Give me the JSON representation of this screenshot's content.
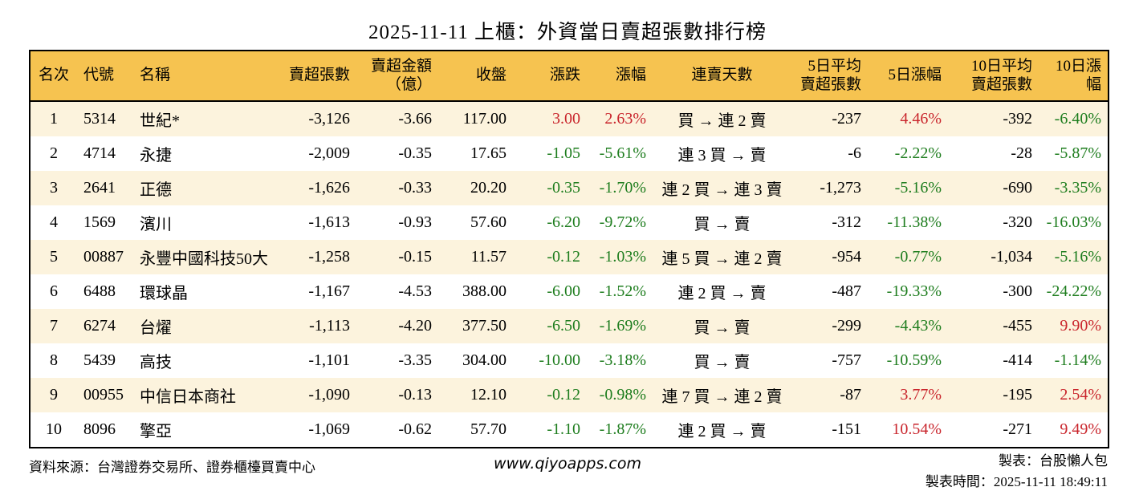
{
  "page": {
    "title": "2025-11-11 上櫃：外資當日賣超張數排行榜"
  },
  "colors": {
    "header_bg": "#f6c350",
    "row_alt_bg": "#fcf3dd",
    "up_red": "#c9252c",
    "down_green": "#1e7d1e",
    "border": "#000000"
  },
  "table": {
    "columns": [
      {
        "key": "rank",
        "label": "名次"
      },
      {
        "key": "code",
        "label": "代號"
      },
      {
        "key": "name",
        "label": "名稱"
      },
      {
        "key": "sell_volume",
        "label": "賣超張數"
      },
      {
        "key": "sell_amount",
        "label": "賣超金額\n（億）"
      },
      {
        "key": "close",
        "label": "收盤"
      },
      {
        "key": "change",
        "label": "漲跌"
      },
      {
        "key": "change_pct",
        "label": "漲幅"
      },
      {
        "key": "sell_streak",
        "label": "連賣天數"
      },
      {
        "key": "avg5_volume",
        "label": "5日平均\n賣超張數"
      },
      {
        "key": "pct5",
        "label": "5日漲幅"
      },
      {
        "key": "avg10_volume",
        "label": "10日平均\n賣超張數"
      },
      {
        "key": "pct10",
        "label": "10日漲幅"
      }
    ],
    "rows": [
      [
        "1",
        "5314",
        "世紀*",
        "-3,126",
        "-3.66",
        "117.00",
        {
          "v": "3.00",
          "c": "up"
        },
        {
          "v": "2.63%",
          "c": "up"
        },
        "買 → 連 2 賣",
        "-237",
        {
          "v": "4.46%",
          "c": "up"
        },
        "-392",
        {
          "v": "-6.40%",
          "c": "down"
        }
      ],
      [
        "2",
        "4714",
        "永捷",
        "-2,009",
        "-0.35",
        "17.65",
        {
          "v": "-1.05",
          "c": "down"
        },
        {
          "v": "-5.61%",
          "c": "down"
        },
        "連 3 買 → 賣",
        "-6",
        {
          "v": "-2.22%",
          "c": "down"
        },
        "-28",
        {
          "v": "-5.87%",
          "c": "down"
        }
      ],
      [
        "3",
        "2641",
        "正德",
        "-1,626",
        "-0.33",
        "20.20",
        {
          "v": "-0.35",
          "c": "down"
        },
        {
          "v": "-1.70%",
          "c": "down"
        },
        "連 2 買 → 連 3 賣",
        "-1,273",
        {
          "v": "-5.16%",
          "c": "down"
        },
        "-690",
        {
          "v": "-3.35%",
          "c": "down"
        }
      ],
      [
        "4",
        "1569",
        "濱川",
        "-1,613",
        "-0.93",
        "57.60",
        {
          "v": "-6.20",
          "c": "down"
        },
        {
          "v": "-9.72%",
          "c": "down"
        },
        "買 → 賣",
        "-312",
        {
          "v": "-11.38%",
          "c": "down"
        },
        "-320",
        {
          "v": "-16.03%",
          "c": "down"
        }
      ],
      [
        "5",
        "00887",
        "永豐中國科技50大",
        "-1,258",
        "-0.15",
        "11.57",
        {
          "v": "-0.12",
          "c": "down"
        },
        {
          "v": "-1.03%",
          "c": "down"
        },
        "連 5 買 → 連 2 賣",
        "-954",
        {
          "v": "-0.77%",
          "c": "down"
        },
        "-1,034",
        {
          "v": "-5.16%",
          "c": "down"
        }
      ],
      [
        "6",
        "6488",
        "環球晶",
        "-1,167",
        "-4.53",
        "388.00",
        {
          "v": "-6.00",
          "c": "down"
        },
        {
          "v": "-1.52%",
          "c": "down"
        },
        "連 2 買 → 賣",
        "-487",
        {
          "v": "-19.33%",
          "c": "down"
        },
        "-300",
        {
          "v": "-24.22%",
          "c": "down"
        }
      ],
      [
        "7",
        "6274",
        "台燿",
        "-1,113",
        "-4.20",
        "377.50",
        {
          "v": "-6.50",
          "c": "down"
        },
        {
          "v": "-1.69%",
          "c": "down"
        },
        "買 → 賣",
        "-299",
        {
          "v": "-4.43%",
          "c": "down"
        },
        "-455",
        {
          "v": "9.90%",
          "c": "up"
        }
      ],
      [
        "8",
        "5439",
        "高技",
        "-1,101",
        "-3.35",
        "304.00",
        {
          "v": "-10.00",
          "c": "down"
        },
        {
          "v": "-3.18%",
          "c": "down"
        },
        "買 → 賣",
        "-757",
        {
          "v": "-10.59%",
          "c": "down"
        },
        "-414",
        {
          "v": "-1.14%",
          "c": "down"
        }
      ],
      [
        "9",
        "00955",
        "中信日本商社",
        "-1,090",
        "-0.13",
        "12.10",
        {
          "v": "-0.12",
          "c": "down"
        },
        {
          "v": "-0.98%",
          "c": "down"
        },
        "連 7 買 → 連 2 賣",
        "-87",
        {
          "v": "3.77%",
          "c": "up"
        },
        "-195",
        {
          "v": "2.54%",
          "c": "up"
        }
      ],
      [
        "10",
        "8096",
        "擎亞",
        "-1,069",
        "-0.62",
        "57.70",
        {
          "v": "-1.10",
          "c": "down"
        },
        {
          "v": "-1.87%",
          "c": "down"
        },
        "連 2 買 → 賣",
        "-151",
        {
          "v": "10.54%",
          "c": "up"
        },
        "-271",
        {
          "v": "9.49%",
          "c": "up"
        }
      ]
    ]
  },
  "footer": {
    "source": "資料來源：台灣證券交易所、證券櫃檯買賣中心",
    "website": "www.qiyoapps.com",
    "maker": "製表：台股懶人包",
    "made_at": "製表時間：2025-11-11 18:49:11"
  }
}
